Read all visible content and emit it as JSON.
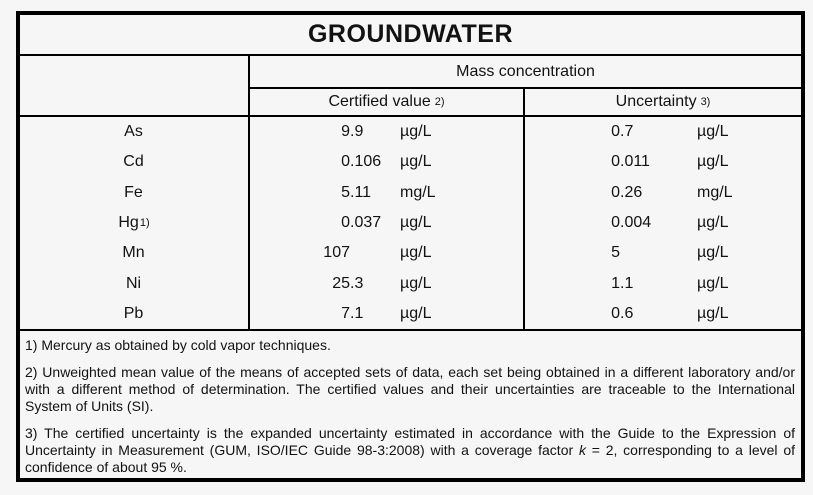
{
  "title": "GROUNDWATER",
  "table": {
    "group_header": "Mass concentration",
    "columns": [
      {
        "label": "Certified value",
        "sup": "2)"
      },
      {
        "label": "Uncertainty",
        "sup": "3)"
      }
    ],
    "rows": [
      {
        "element": "As",
        "cert_value": "9.9",
        "cert_unit": "µg/L",
        "unc_value": "0.7",
        "unc_unit": "µg/L"
      },
      {
        "element": "Cd",
        "cert_value": "0.106",
        "cert_unit": "µg/L",
        "unc_value": "0.011",
        "unc_unit": "µg/L"
      },
      {
        "element": "Fe",
        "cert_value": "5.11",
        "cert_unit": "mg/L",
        "unc_value": "0.26",
        "unc_unit": "mg/L"
      },
      {
        "element": "Hg",
        "element_sup": "1)",
        "cert_value": "0.037",
        "cert_unit": "µg/L",
        "unc_value": "0.004",
        "unc_unit": "µg/L"
      },
      {
        "element": "Mn",
        "cert_value": "107",
        "cert_unit": "µg/L",
        "unc_value": "5",
        "unc_unit": "µg/L"
      },
      {
        "element": "Ni",
        "cert_value": "25.3",
        "cert_unit": "µg/L",
        "unc_value": "1.1",
        "unc_unit": "µg/L"
      },
      {
        "element": "Pb",
        "cert_value": "7.1",
        "cert_unit": "µg/L",
        "unc_value": "0.6",
        "unc_unit": "µg/L"
      }
    ]
  },
  "footnotes": {
    "fn1": "1) Mercury as obtained by cold vapor techniques.",
    "fn2": "2) Unweighted mean value of the means of accepted sets of data, each set being obtained in a different laboratory and/or with a different method of determination. The certified values and their uncertainties are traceable to the International System of Units (SI).",
    "fn3_pre": "3) The certified uncertainty is the expanded uncertainty estimated in accordance with the Guide to the Expression of Uncertainty in Measurement (GUM, ISO/IEC Guide 98-3:2008) with a coverage factor ",
    "fn3_k": "k",
    "fn3_post": " = 2, corresponding to a level of confidence of about 95 %."
  }
}
